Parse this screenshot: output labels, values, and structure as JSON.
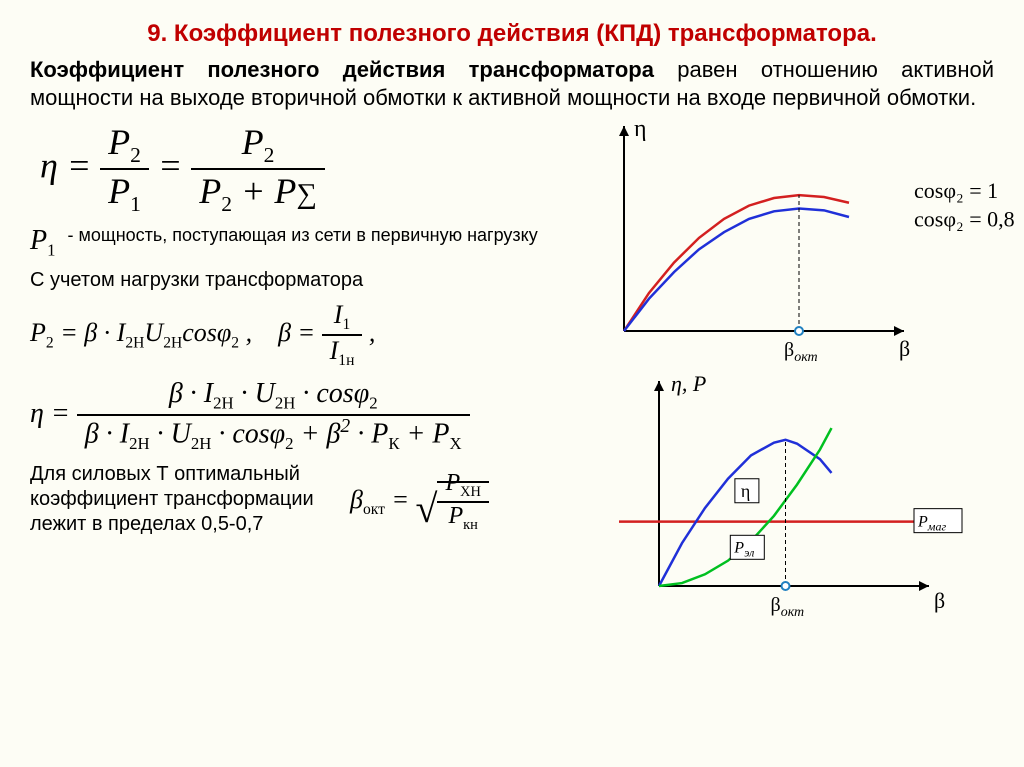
{
  "title": "9. Коэффициент полезного действия (КПД) трансформатора.",
  "intro_bold": "Коэффициент полезного действия трансформатора",
  "intro_rest": " равен отношению активной мощности на выходе вторичной обмотки к активной мощности на входе первичной обмотки.",
  "p1_note": "- мощность, поступающая из сети в первичную нагрузку",
  "load_text": "С учетом нагрузки трансформатора",
  "bottom_text": "Для силовых Т оптимальный коэффициент трансформации лежит в пределах 0,5-0,7",
  "chart1": {
    "y_label": "η",
    "x_label": "β",
    "x_tick": "β",
    "x_tick_sub": "окт",
    "curve_red_label": "cosφ₂ = 1",
    "curve_blue_label": "cosφ₂ = 0,8",
    "colors": {
      "red": "#d32020",
      "blue": "#2030d8",
      "axis": "#000"
    },
    "xlim": [
      0,
      10
    ],
    "ylim": [
      0,
      10
    ],
    "red_curve": [
      [
        0,
        0
      ],
      [
        1,
        2.0
      ],
      [
        2,
        3.6
      ],
      [
        3,
        4.9
      ],
      [
        4,
        5.9
      ],
      [
        5,
        6.6
      ],
      [
        6,
        7.0
      ],
      [
        7,
        7.15
      ],
      [
        8,
        7.05
      ],
      [
        9,
        6.75
      ]
    ],
    "blue_curve": [
      [
        0,
        0
      ],
      [
        1,
        1.7
      ],
      [
        2,
        3.1
      ],
      [
        3,
        4.3
      ],
      [
        4,
        5.2
      ],
      [
        5,
        5.9
      ],
      [
        6,
        6.3
      ],
      [
        7,
        6.45
      ],
      [
        8,
        6.35
      ],
      [
        9,
        6.0
      ]
    ],
    "beta_okt": 7
  },
  "chart2": {
    "y_label": "η, P",
    "x_label": "β",
    "x_tick": "β",
    "x_tick_sub": "окт",
    "colors": {
      "red": "#d32020",
      "blue": "#2030d8",
      "green": "#00c020",
      "axis": "#000"
    },
    "xlim": [
      0,
      10
    ],
    "ylim": [
      0,
      10
    ],
    "blue_curve": [
      [
        0,
        0
      ],
      [
        1,
        2.2
      ],
      [
        2,
        4.0
      ],
      [
        3,
        5.5
      ],
      [
        4,
        6.7
      ],
      [
        5,
        7.35
      ],
      [
        5.5,
        7.5
      ],
      [
        6,
        7.3
      ],
      [
        7,
        6.5
      ],
      [
        7.5,
        5.8
      ]
    ],
    "green_curve": [
      [
        0,
        0
      ],
      [
        1,
        0.15
      ],
      [
        2,
        0.6
      ],
      [
        3,
        1.3
      ],
      [
        4,
        2.3
      ],
      [
        5,
        3.6
      ],
      [
        6,
        5.2
      ],
      [
        7,
        7.0
      ],
      [
        7.5,
        8.1
      ]
    ],
    "red_line_y": 3.3,
    "beta_okt": 5.5,
    "eta_box": "η",
    "p_el": "P",
    "p_el_sub": "эл",
    "p_mag": "P",
    "p_mag_sub": "маг"
  },
  "formulas": {
    "sigma": "Σ",
    "beta_okt_lhs": "β",
    "beta_okt_sub": "окт"
  }
}
